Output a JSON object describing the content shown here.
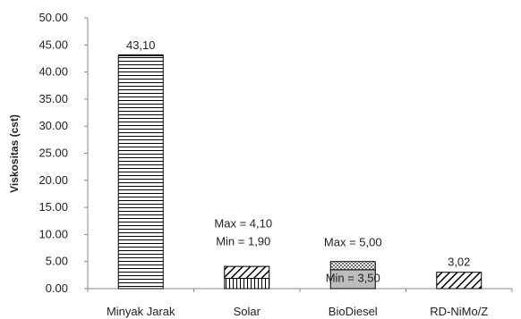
{
  "chart_data": {
    "type": "bar",
    "ylabel": "Viskositas (cst)",
    "xlabel": "",
    "ylim": [
      0,
      50
    ],
    "yticks": [
      "0.00",
      "5.00",
      "10.00",
      "15.00",
      "20.00",
      "25.00",
      "30.00",
      "35.00",
      "40.00",
      "45.00",
      "50.00"
    ],
    "grid": false,
    "categories": [
      "Minyak Jarak",
      "Solar",
      "BioDiesel",
      "RD-NiMo/Z"
    ],
    "bars": [
      {
        "category": "Minyak Jarak",
        "value": 43.1,
        "pattern": "horizontal-lines",
        "label": "43,10"
      },
      {
        "category": "Solar",
        "min": 1.9,
        "max": 4.1,
        "pattern": "vertical-lines+diagonal-hatch",
        "label_max": "Max  = 4,10",
        "label_min": "Min = 1,90"
      },
      {
        "category": "BioDiesel",
        "min": 3.5,
        "max": 5.0,
        "pattern": "gray-solid+checker",
        "label_max": "Max = 5,00",
        "label_min": "Min = 3,50"
      },
      {
        "category": "RD-NiMo/Z",
        "value": 3.02,
        "pattern": "diagonal-hatch",
        "label": "3,02"
      }
    ]
  }
}
